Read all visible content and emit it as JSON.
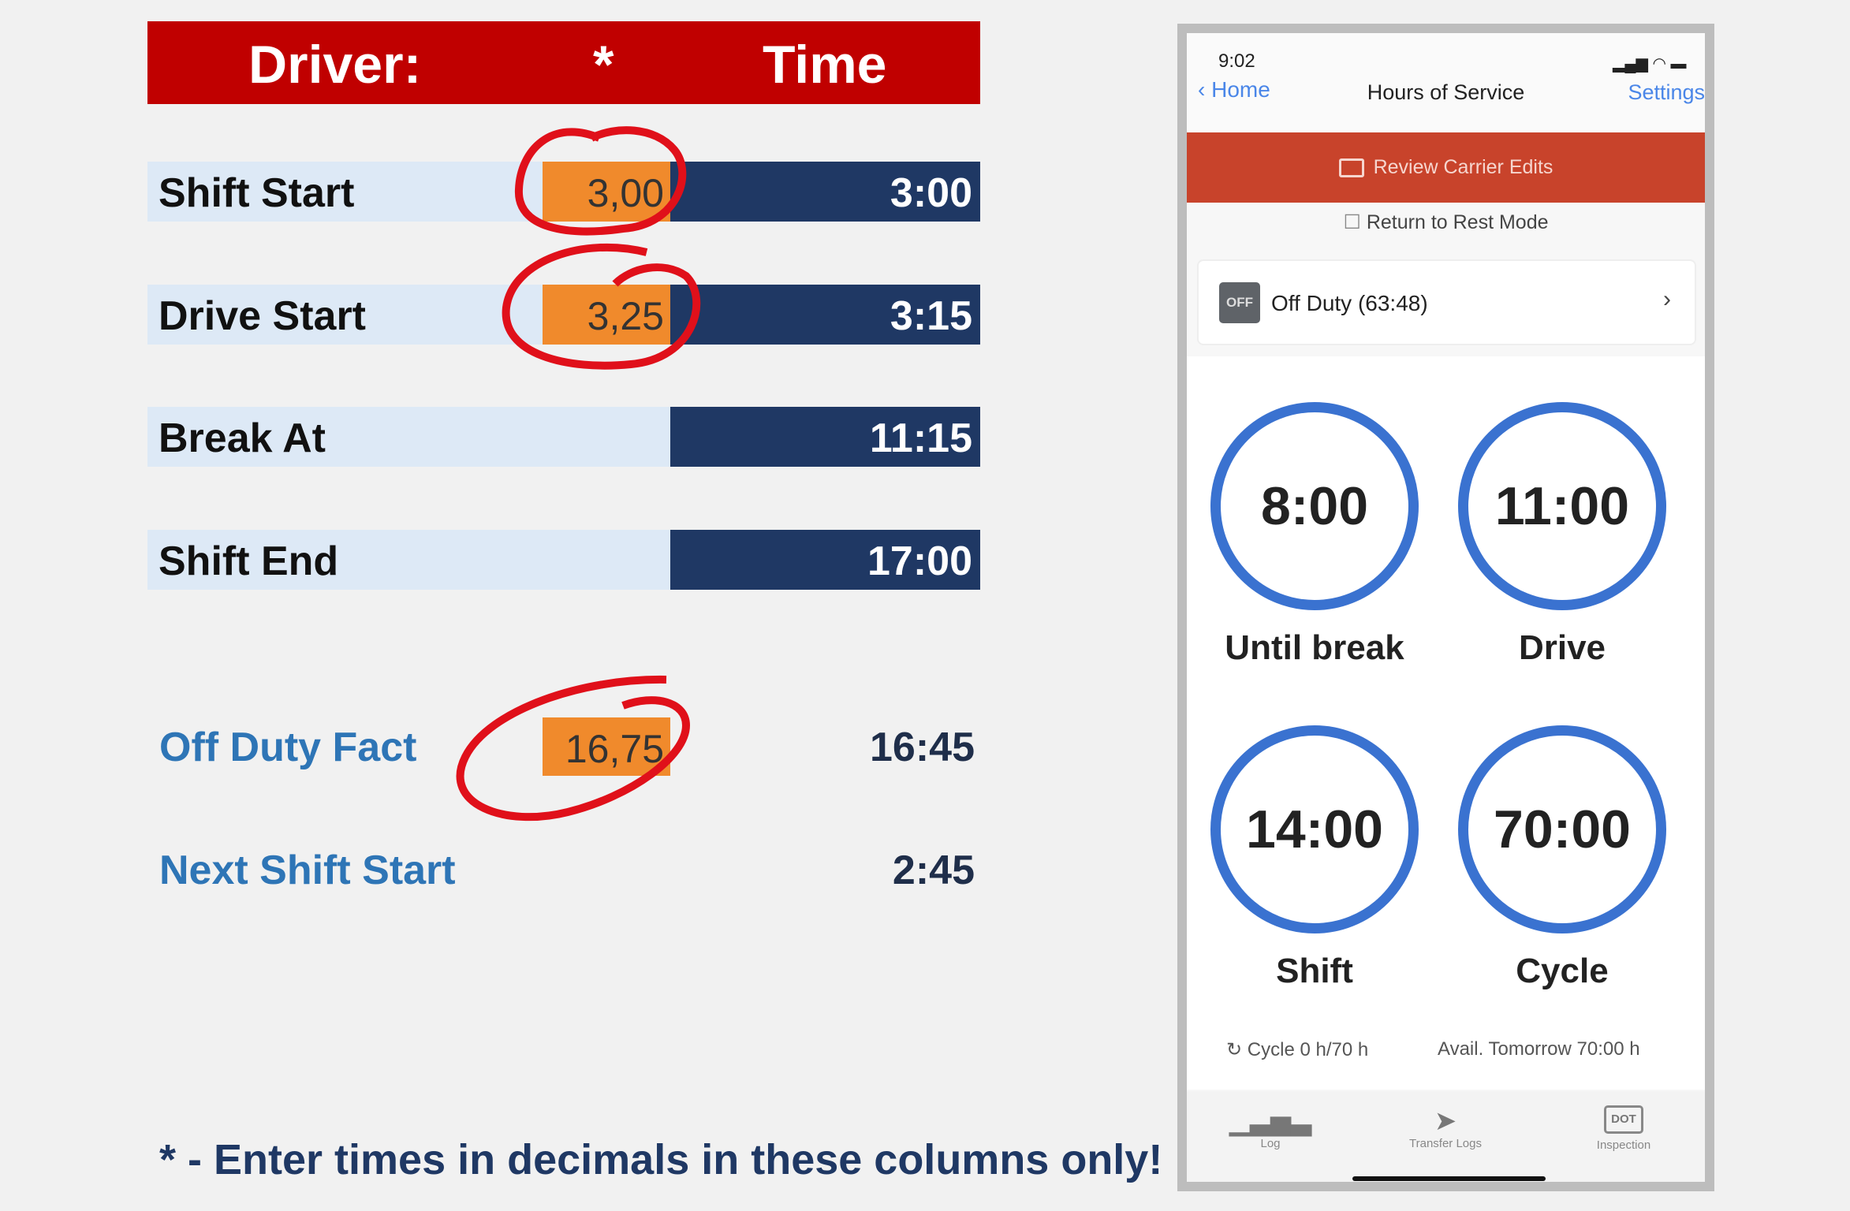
{
  "sheet": {
    "header": {
      "col1": "Driver:",
      "col2": "*",
      "col3": "Time"
    },
    "rows": [
      {
        "label": "Shift Start",
        "decimal": "3,00",
        "time": "3:00"
      },
      {
        "label": "Drive Start",
        "decimal": "3,25",
        "time": "3:15"
      },
      {
        "label": "Break At",
        "decimal": "",
        "time": "11:15"
      },
      {
        "label": "Shift End",
        "decimal": "",
        "time": "17:00"
      }
    ],
    "off_duty": {
      "label": "Off Duty Fact",
      "decimal": "16,75",
      "time": "16:45"
    },
    "next_shift": {
      "label": "Next Shift Start",
      "time": "2:45"
    },
    "footnote": "* - Enter times in decimals in these columns only!",
    "colors": {
      "header": "#c00000",
      "navy": "#1f3864",
      "orange": "#f08a2c",
      "label_bg": "#dde9f6",
      "annotation": "#e0101a"
    }
  },
  "phone": {
    "status": {
      "time": "9:02"
    },
    "nav": {
      "back": "Home",
      "title": "Hours of Service",
      "settings": "Settings"
    },
    "banner": "Review Carrier Edits",
    "rest_mode": "Return to Rest Mode",
    "duty": {
      "badge": "OFF",
      "label": "Off Duty (63:48)"
    },
    "clocks": [
      {
        "value": "8:00",
        "label": "Until break"
      },
      {
        "value": "11:00",
        "label": "Drive"
      },
      {
        "value": "14:00",
        "label": "Shift"
      },
      {
        "value": "70:00",
        "label": "Cycle"
      }
    ],
    "cycle": "Cycle 0 h/70 h",
    "avail": "Avail. Tomorrow 70:00 h",
    "tabs": [
      {
        "label": "Log",
        "icon": "bar-chart-icon"
      },
      {
        "label": "Transfer Logs",
        "icon": "paper-plane-icon"
      },
      {
        "label": "Inspection",
        "icon": "dot-icon",
        "icon_text": "DOT"
      }
    ],
    "colors": {
      "accent": "#3a72d0",
      "banner": "#c8432b"
    }
  }
}
